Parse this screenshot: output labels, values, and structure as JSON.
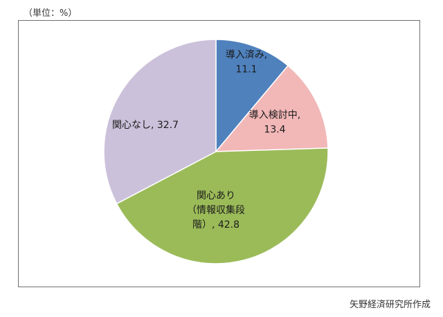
{
  "header": {
    "unit": "（単位：%）"
  },
  "footer": {
    "source": "矢野経済研究所作成"
  },
  "chart_data": {
    "type": "pie",
    "title": "",
    "unit": "%",
    "slices": [
      {
        "label_lines": [
          "導入済み,",
          "11.1"
        ],
        "value": 11.1,
        "color": "#4f81bd"
      },
      {
        "label_lines": [
          "導入検討中,",
          "13.4"
        ],
        "value": 13.4,
        "color": "#f2b7b7"
      },
      {
        "label_lines": [
          "関心あり",
          "（情報収集段",
          "階）, 42.8"
        ],
        "value": 42.8,
        "color": "#9bbb59"
      },
      {
        "label_lines": [
          "関心なし, 32.7"
        ],
        "value": 32.7,
        "color": "#ccc1da"
      }
    ],
    "start_angle_deg": 0,
    "direction": "clockwise",
    "stroke_color": "#ffffff"
  }
}
